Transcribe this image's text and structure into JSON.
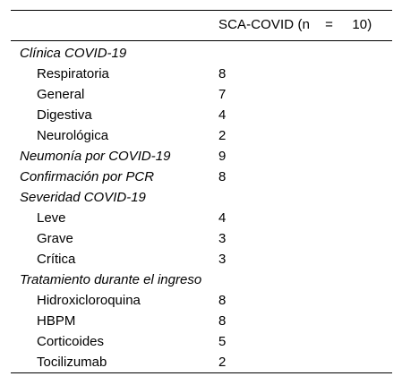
{
  "table": {
    "header": "SCA-COVID (n    =     10)",
    "rows": [
      {
        "label": "Clínica COVID-19",
        "value": "",
        "kind": "section"
      },
      {
        "label": "Respiratoria",
        "value": "8",
        "kind": "sub"
      },
      {
        "label": "General",
        "value": "7",
        "kind": "sub"
      },
      {
        "label": "Digestiva",
        "value": "4",
        "kind": "sub"
      },
      {
        "label": "Neurológica",
        "value": "2",
        "kind": "sub"
      },
      {
        "label": "Neumonía por COVID-19",
        "value": "9",
        "kind": "section"
      },
      {
        "label": "Confirmación por PCR",
        "value": "8",
        "kind": "section"
      },
      {
        "label": "Severidad COVID-19",
        "value": "",
        "kind": "section"
      },
      {
        "label": "Leve",
        "value": "4",
        "kind": "sub"
      },
      {
        "label": "Grave",
        "value": "3",
        "kind": "sub"
      },
      {
        "label": "Crítica",
        "value": "3",
        "kind": "sub"
      },
      {
        "label": "Tratamiento durante el ingreso",
        "value": "",
        "kind": "section"
      },
      {
        "label": "Hidroxicloroquina",
        "value": "8",
        "kind": "sub"
      },
      {
        "label": "HBPM",
        "value": "8",
        "kind": "sub"
      },
      {
        "label": "Corticoides",
        "value": "5",
        "kind": "sub"
      },
      {
        "label": "Tocilizumab",
        "value": "2",
        "kind": "sub"
      }
    ]
  }
}
